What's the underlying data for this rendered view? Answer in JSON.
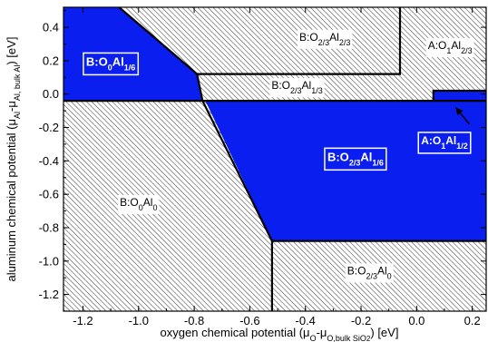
{
  "chart_data": {
    "type": "phase-diagram",
    "xlabel": {
      "main": "oxygen chemical potential (μ",
      "s1": "O",
      "m2": "-μ",
      "s2": "O,bulk SiO",
      "s3": "2",
      "m3": ") [eV]"
    },
    "ylabel": {
      "main": "aluminum chemical potential (μ",
      "s1": "Al",
      "m2": "-μ",
      "s2": "Al, bulk Al",
      "m3": ") [eV]"
    },
    "xlim": [
      -1.27,
      0.25
    ],
    "ylim": [
      -1.3,
      0.52
    ],
    "xticks": [
      {
        "v": -1.2,
        "label": "-1.2"
      },
      {
        "v": -1.0,
        "label": "-1.0"
      },
      {
        "v": -0.8,
        "label": "-0.8"
      },
      {
        "v": -0.6,
        "label": "-0.6"
      },
      {
        "v": -0.4,
        "label": "-0.4"
      },
      {
        "v": -0.2,
        "label": "-0.2"
      },
      {
        "v": 0.0,
        "label": "0.0"
      },
      {
        "v": 0.2,
        "label": "0.2"
      }
    ],
    "yticks": [
      {
        "v": 0.4,
        "label": "0.4"
      },
      {
        "v": 0.2,
        "label": "0.2"
      },
      {
        "v": 0.0,
        "label": "0.0"
      },
      {
        "v": -0.2,
        "label": "-0.2"
      },
      {
        "v": -0.4,
        "label": "-0.4"
      },
      {
        "v": -0.6,
        "label": "-0.6"
      },
      {
        "v": -0.8,
        "label": "-0.8"
      },
      {
        "v": -1.0,
        "label": "-1.0"
      },
      {
        "v": -1.2,
        "label": "-1.2"
      }
    ],
    "regions": [
      {
        "id": "B-O0-Al1/6",
        "fill": "#0a1ef0",
        "points": [
          [
            -1.27,
            0.52
          ],
          [
            -1.07,
            0.52
          ],
          [
            -0.79,
            0.12
          ],
          [
            -0.77,
            -0.04
          ],
          [
            -1.27,
            -0.04
          ]
        ]
      },
      {
        "id": "B-O2/3-Al1/6",
        "fill": "#0a1ef0",
        "points": [
          [
            -0.76,
            -0.04
          ],
          [
            0.25,
            -0.04
          ],
          [
            0.25,
            -0.88
          ],
          [
            -0.52,
            -0.88
          ]
        ]
      },
      {
        "id": "A-O1-Al1/2",
        "fill": "#0a1ef0",
        "points": [
          [
            0.06,
            0.02
          ],
          [
            0.25,
            0.02
          ],
          [
            0.25,
            -0.04
          ],
          [
            0.06,
            -0.04
          ]
        ]
      }
    ],
    "boundaries": [
      {
        "id": "b1",
        "points": [
          [
            -1.07,
            0.52
          ],
          [
            -0.79,
            0.12
          ],
          [
            -0.77,
            -0.04
          ],
          [
            -0.52,
            -0.88
          ],
          [
            -0.52,
            -1.3
          ]
        ]
      },
      {
        "id": "b2",
        "points": [
          [
            -0.79,
            0.12
          ],
          [
            -0.06,
            0.12
          ],
          [
            -0.06,
            0.52
          ]
        ]
      },
      {
        "id": "b3",
        "points": [
          [
            -1.27,
            -0.04
          ],
          [
            0.25,
            -0.04
          ]
        ]
      },
      {
        "id": "b4",
        "points": [
          [
            -0.52,
            -0.88
          ],
          [
            0.25,
            -0.88
          ]
        ]
      },
      {
        "id": "b5",
        "points": [
          [
            0.06,
            -0.04
          ],
          [
            0.06,
            0.02
          ],
          [
            0.25,
            0.02
          ]
        ]
      }
    ],
    "labels": [
      {
        "id": "label-o2-3-al2-3",
        "x": -0.33,
        "y": 0.32,
        "style": "plain",
        "parts": [
          {
            "t": "B:O"
          },
          {
            "t": "2/3",
            "sub": true
          },
          {
            "t": "Al"
          },
          {
            "t": "2/3",
            "sub": true
          }
        ]
      },
      {
        "id": "label-o1-al2-3",
        "x": 0.12,
        "y": 0.27,
        "style": "plain",
        "parts": [
          {
            "t": "A:O"
          },
          {
            "t": "1",
            "sub": true
          },
          {
            "t": "Al"
          },
          {
            "t": "2/3",
            "sub": true
          }
        ]
      },
      {
        "id": "label-o0-al1-6",
        "x": -1.1,
        "y": 0.17,
        "style": "box",
        "parts": [
          {
            "t": "B:O"
          },
          {
            "t": "0",
            "sub": true
          },
          {
            "t": "Al"
          },
          {
            "t": "1/6",
            "sub": true
          }
        ]
      },
      {
        "id": "label-o2-3-al1-3",
        "x": -0.43,
        "y": 0.03,
        "style": "plain",
        "parts": [
          {
            "t": "B:O"
          },
          {
            "t": "2/3",
            "sub": true
          },
          {
            "t": "Al"
          },
          {
            "t": "1/3",
            "sub": true
          }
        ]
      },
      {
        "id": "label-o2-3-al1-6",
        "x": -0.22,
        "y": -0.4,
        "style": "box",
        "parts": [
          {
            "t": "B:O"
          },
          {
            "t": "2/3",
            "sub": true
          },
          {
            "t": "Al"
          },
          {
            "t": "1/6",
            "sub": true
          }
        ]
      },
      {
        "id": "label-o1-al1-2",
        "x": 0.1,
        "y": -0.3,
        "style": "callout",
        "parts": [
          {
            "t": "A:O"
          },
          {
            "t": "1",
            "sub": true
          },
          {
            "t": "Al"
          },
          {
            "t": "1/2",
            "sub": true
          }
        ]
      },
      {
        "id": "label-o0-al0",
        "x": -1.0,
        "y": -0.67,
        "style": "plain",
        "parts": [
          {
            "t": "B:O"
          },
          {
            "t": "0",
            "sub": true
          },
          {
            "t": "Al"
          },
          {
            "t": "0",
            "sub": true
          }
        ]
      },
      {
        "id": "label-o2-3-al0",
        "x": -0.17,
        "y": -1.08,
        "style": "plain",
        "parts": [
          {
            "t": "B:O"
          },
          {
            "t": "2/3",
            "sub": true
          },
          {
            "t": "Al"
          },
          {
            "t": "0",
            "sub": true
          }
        ]
      }
    ],
    "arrow": {
      "from": [
        0.19,
        -0.18
      ],
      "to": [
        0.14,
        -0.08
      ]
    },
    "hatch": {
      "pattern": "diagonal",
      "color": "#000000"
    },
    "grid": false,
    "legend": "none"
  }
}
